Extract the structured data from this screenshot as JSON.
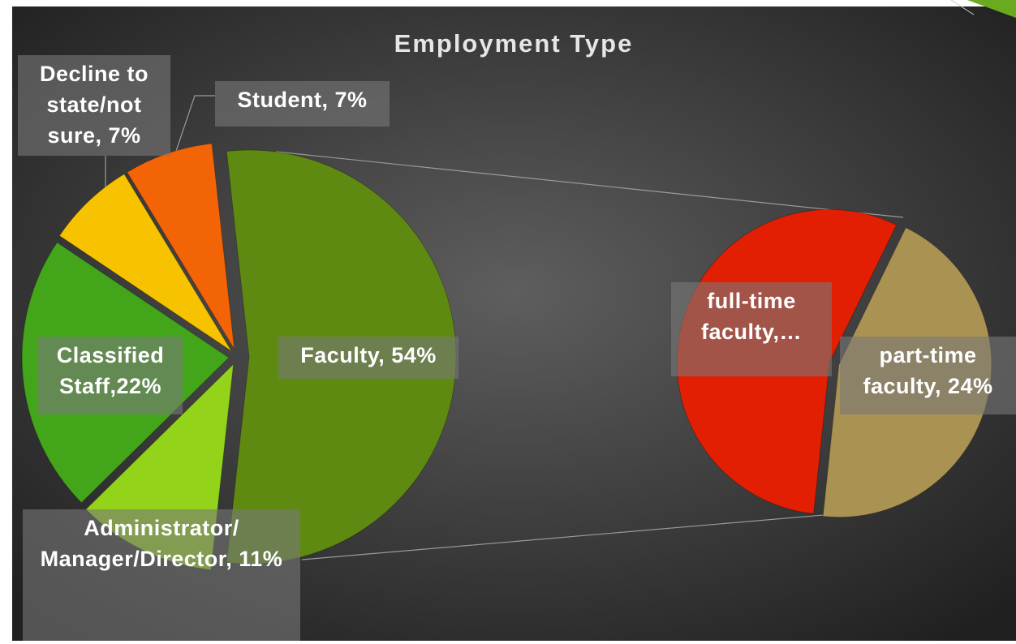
{
  "chart_data": {
    "type": "pie",
    "title": "Employment Type",
    "values": [
      54,
      11,
      22,
      7,
      7
    ],
    "value_labels": [
      "Faculty, 54%",
      "Administrator/ Manager/Director, 11%",
      "Classified Staff,22%",
      "Decline to state/not sure, 7%",
      "Student, 7%"
    ],
    "colors": [
      "#5f8a12",
      "#93d31a",
      "#42a51a",
      "#f7c300",
      "#f26406"
    ],
    "secondary": {
      "values": [
        30,
        24
      ],
      "value_labels": [
        "full-time faculty,…",
        "part-time faculty, 24%"
      ],
      "colors": [
        "#e21f02",
        "#a99252"
      ]
    }
  }
}
